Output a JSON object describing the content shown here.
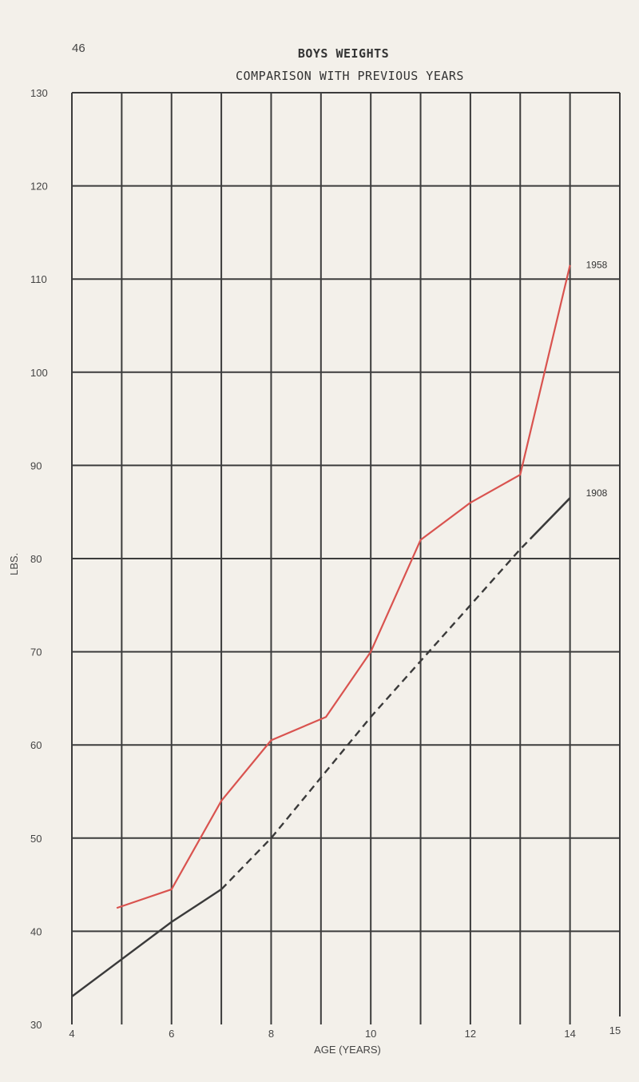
{
  "page_number": "46",
  "chart_data": {
    "type": "line",
    "title": "BOYS WEIGHTS",
    "subtitle": "COMPARISON WITH PREVIOUS YEARS",
    "xlabel": "AGE (YEARS)",
    "ylabel": "LBS.",
    "xlim": [
      4,
      15
    ],
    "ylim": [
      30,
      130
    ],
    "x_ticks": [
      4,
      6,
      8,
      10,
      12,
      14,
      15
    ],
    "y_ticks": [
      30,
      40,
      50,
      60,
      70,
      80,
      90,
      100,
      110,
      120,
      130
    ],
    "grid": true,
    "colors": {
      "1958": "#d9534f",
      "1908": "#3a3a3a",
      "grid": "#3c3c3c"
    },
    "series": [
      {
        "name": "1958",
        "style": "solid",
        "points": [
          [
            4.9,
            42.5
          ],
          [
            6.0,
            44.5
          ],
          [
            7.0,
            54.0
          ],
          [
            8.0,
            60.5
          ],
          [
            9.1,
            63.0
          ],
          [
            10.0,
            70.0
          ],
          [
            11.0,
            82.0
          ],
          [
            12.0,
            86.0
          ],
          [
            13.0,
            89.0
          ],
          [
            14.0,
            111.5
          ]
        ]
      },
      {
        "name": "1908",
        "style": "solid-dashed-solid",
        "points": [
          [
            4.0,
            33.0
          ],
          [
            6.0,
            41.0
          ],
          [
            7.0,
            44.5
          ],
          [
            8.0,
            50.0
          ],
          [
            9.0,
            56.5
          ],
          [
            10.0,
            63.0
          ],
          [
            11.0,
            69.0
          ],
          [
            12.0,
            75.0
          ],
          [
            13.0,
            81.0
          ],
          [
            14.0,
            86.5
          ]
        ],
        "dashed_range": [
          7.0,
          13.2
        ]
      }
    ]
  }
}
